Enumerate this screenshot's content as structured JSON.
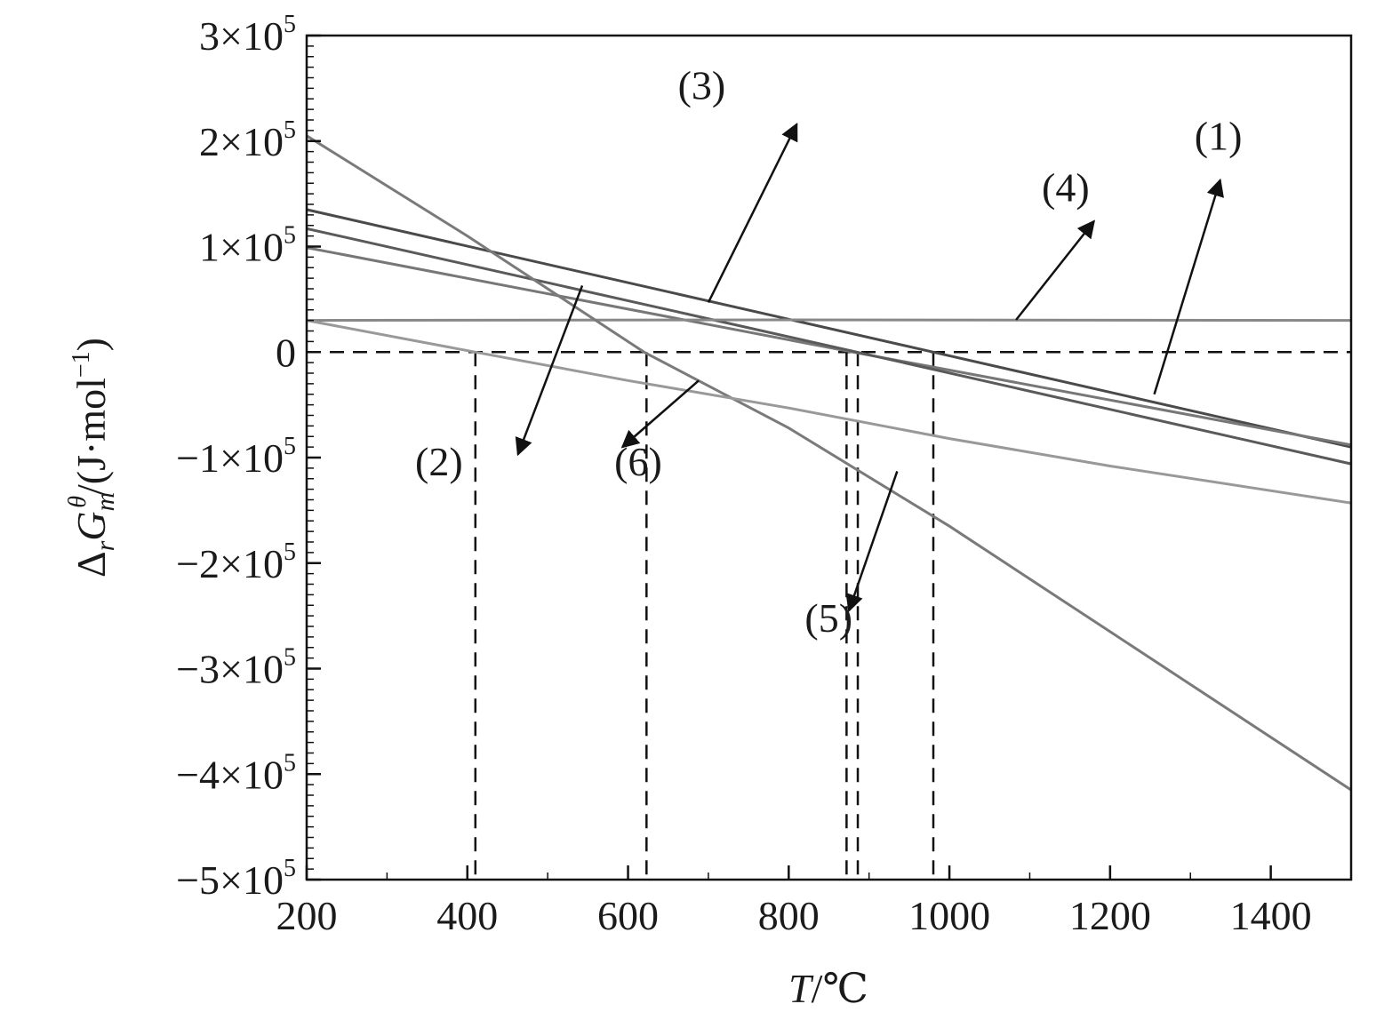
{
  "chart_data": {
    "type": "line",
    "title": "",
    "xlabel": {
      "var": "T",
      "unit": "/℃"
    },
    "ylabel": {
      "prefix": "Δ",
      "sub1": "r",
      "var": "G",
      "sub2": "m",
      "sup": "θ",
      "unit": "/(J·mol",
      "unit_sup": "−1",
      "unit_close": ")"
    },
    "xlim": [
      200,
      1500
    ],
    "ylim": [
      -500000,
      300000
    ],
    "grid": false,
    "legend": "none",
    "x_ticks": [
      {
        "value": 200,
        "label": "200"
      },
      {
        "value": 400,
        "label": "400"
      },
      {
        "value": 600,
        "label": "600"
      },
      {
        "value": 800,
        "label": "800"
      },
      {
        "value": 1000,
        "label": "1000"
      },
      {
        "value": 1200,
        "label": "1200"
      },
      {
        "value": 1400,
        "label": "1400"
      }
    ],
    "y_ticks": [
      {
        "value": 300000,
        "mant": "3×10",
        "exp": "5"
      },
      {
        "value": 200000,
        "mant": "2×10",
        "exp": "5"
      },
      {
        "value": 100000,
        "mant": "1×10",
        "exp": "5"
      },
      {
        "value": 0,
        "mant": "0",
        "exp": ""
      },
      {
        "value": -100000,
        "mant": "−1×10",
        "exp": "5"
      },
      {
        "value": -200000,
        "mant": "−2×10",
        "exp": "5"
      },
      {
        "value": -300000,
        "mant": "−3×10",
        "exp": "5"
      },
      {
        "value": -400000,
        "mant": "−4×10",
        "exp": "5"
      },
      {
        "value": -500000,
        "mant": "−5×10",
        "exp": "5"
      }
    ],
    "series": [
      {
        "label": "(1)",
        "color": "#4a4a4a",
        "x": [
          200,
          980,
          1500
        ],
        "y": [
          135000,
          0,
          -90000
        ]
      },
      {
        "label": "(2)",
        "color": "#777777",
        "x": [
          200,
          880,
          1500
        ],
        "y": [
          99000,
          0,
          -88000
        ]
      },
      {
        "label": "(3)",
        "color": "#5a5a5a",
        "x": [
          200,
          885,
          1500
        ],
        "y": [
          117000,
          0,
          -106000
        ]
      },
      {
        "label": "(4)",
        "color": "#888888",
        "x": [
          200,
          800,
          1500
        ],
        "y": [
          30000,
          30500,
          30000
        ]
      },
      {
        "label": "(5)",
        "color": "#7a7a7a",
        "x": [
          200,
          400,
          620,
          800,
          1000,
          1200,
          1500
        ],
        "y": [
          205000,
          110000,
          0,
          -72000,
          -165000,
          -265000,
          -415000
        ]
      },
      {
        "label": "(6)",
        "color": "#999999",
        "x": [
          200,
          410,
          600,
          800,
          1000,
          1200,
          1500
        ],
        "y": [
          30000,
          0,
          -27000,
          -53000,
          -82000,
          -108000,
          -143000
        ]
      }
    ],
    "reference_lines": [
      {
        "type": "horizontal",
        "y": 0
      },
      {
        "type": "vertical",
        "x": 410
      },
      {
        "type": "vertical",
        "x": 623
      },
      {
        "type": "vertical",
        "x": 872
      },
      {
        "type": "vertical",
        "x": 886
      },
      {
        "type": "vertical",
        "x": 980
      }
    ],
    "annotations": [
      {
        "text": "(1)",
        "text_x": 1305,
        "text_y": 192000,
        "arrow_from": [
          1255,
          -40000
        ],
        "arrow_to": [
          1337,
          163000
        ]
      },
      {
        "text": "(2)",
        "text_x": 335,
        "text_y": -117000,
        "arrow_from": [
          543,
          63000
        ],
        "arrow_to": [
          463,
          -97000
        ]
      },
      {
        "text": "(3)",
        "text_x": 662,
        "text_y": 240000,
        "arrow_from": [
          700,
          47000
        ],
        "arrow_to": [
          810,
          216000
        ]
      },
      {
        "text": "(4)",
        "text_x": 1115,
        "text_y": 143000,
        "arrow_from": [
          1083,
          30500
        ],
        "arrow_to": [
          1180,
          124000
        ]
      },
      {
        "text": "(5)",
        "text_x": 820,
        "text_y": -265000,
        "arrow_from": [
          935,
          -113000
        ],
        "arrow_to": [
          875,
          -245000
        ]
      },
      {
        "text": "(6)",
        "text_x": 583,
        "text_y": -117000,
        "arrow_from": [
          688,
          -27000
        ],
        "arrow_to": [
          593,
          -90000
        ]
      }
    ]
  }
}
